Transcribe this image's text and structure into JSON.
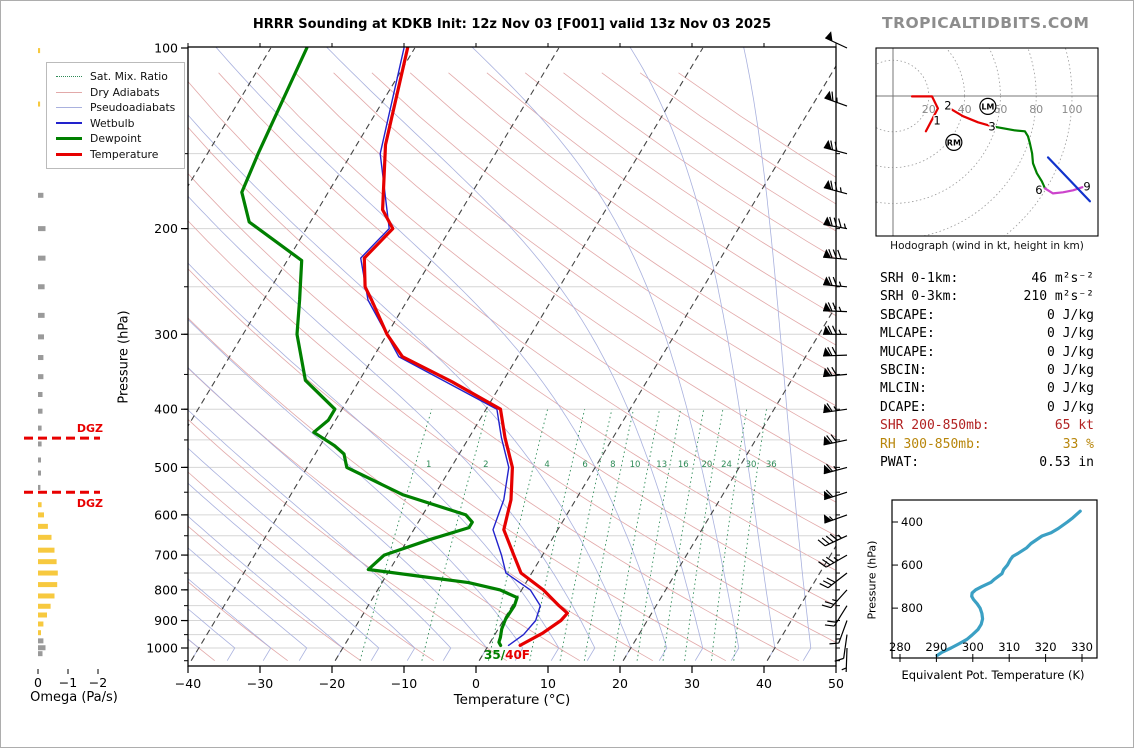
{
  "branding": "TROPICALTIDBITS.COM",
  "title": "HRRR Sounding at KDKB Init: 12z Nov 03 [F001] valid 13z Nov 03 2025",
  "stats": {
    "rows": [
      {
        "label": "SRH 0-1km:",
        "value": "46 m²s⁻²",
        "color": "#000000"
      },
      {
        "label": "SRH 0-3km:",
        "value": "210 m²s⁻²",
        "color": "#000000"
      },
      {
        "label": "SBCAPE:",
        "value": "0 J/kg",
        "color": "#000000"
      },
      {
        "label": "MLCAPE:",
        "value": "0 J/kg",
        "color": "#000000"
      },
      {
        "label": "MUCAPE:",
        "value": "0 J/kg",
        "color": "#000000"
      },
      {
        "label": "SBCIN:",
        "value": "0 J/kg",
        "color": "#000000"
      },
      {
        "label": "MLCIN:",
        "value": "0 J/kg",
        "color": "#000000"
      },
      {
        "label": "DCAPE:",
        "value": "0 J/kg",
        "color": "#000000"
      },
      {
        "label": "SHR 200-850mb:",
        "value": "65 kt",
        "color": "#b22222"
      },
      {
        "label": "RH 300-850mb:",
        "value": "33 %",
        "color": "#b8860b"
      },
      {
        "label": "PWAT:",
        "value": "0.53 in",
        "color": "#000000"
      }
    ]
  },
  "chart_data": [
    {
      "id": "skewt",
      "type": "line",
      "xlabel": "Temperature (°C)",
      "ylabel": "Pressure (hPa)",
      "xlim": [
        -40,
        50
      ],
      "plim": [
        100,
        1050
      ],
      "x_ticks": [
        -40,
        -30,
        -20,
        -10,
        0,
        10,
        20,
        30,
        40,
        50
      ],
      "p_ticks": [
        100,
        200,
        300,
        400,
        500,
        600,
        700,
        800,
        900,
        1000
      ],
      "mixing_ratio_labels": [
        1,
        2,
        4,
        6,
        8,
        10,
        13,
        16,
        20,
        24,
        30,
        36
      ],
      "surface_label": {
        "dew": "35/",
        "temp": "40F"
      },
      "legend": [
        {
          "label": "Sat. Mix. Ratio",
          "color": "#2e8b57",
          "style": "dotted",
          "width": 1.5
        },
        {
          "label": "Dry Adiabats",
          "color": "#e2a9a9",
          "style": "solid",
          "width": 1.5
        },
        {
          "label": "Pseudoadiabats",
          "color": "#a9b1de",
          "style": "solid",
          "width": 1.5
        },
        {
          "label": "Wetbulb",
          "color": "#2222cc",
          "style": "solid",
          "width": 2
        },
        {
          "label": "Dewpoint",
          "color": "#008000",
          "style": "solid",
          "width": 3.5
        },
        {
          "label": "Temperature",
          "color": "#e60000",
          "style": "solid",
          "width": 3.5
        }
      ],
      "series": [
        {
          "name": "Temperature",
          "color": "#e60000",
          "width": 3.2,
          "points": [
            [
              100,
              -61
            ],
            [
              145,
              -56
            ],
            [
              186,
              -51
            ],
            [
              200,
              -48
            ],
            [
              224,
              -49.5
            ],
            [
              250,
              -47
            ],
            [
              263,
              -45
            ],
            [
              300,
              -40
            ],
            [
              327,
              -36
            ],
            [
              360,
              -27
            ],
            [
              400,
              -18
            ],
            [
              446,
              -15
            ],
            [
              500,
              -11.5
            ],
            [
              566,
              -9
            ],
            [
              635,
              -7.5
            ],
            [
              700,
              -4
            ],
            [
              750,
              -1.5
            ],
            [
              800,
              3
            ],
            [
              850,
              6.5
            ],
            [
              875,
              8.3
            ],
            [
              900,
              8
            ],
            [
              945,
              6.5
            ],
            [
              990,
              4.4
            ]
          ]
        },
        {
          "name": "Dewpoint",
          "color": "#008000",
          "width": 3.2,
          "points": [
            [
              100,
              -75
            ],
            [
              149,
              -73
            ],
            [
              174,
              -72
            ],
            [
              195,
              -68.5
            ],
            [
              226,
              -58
            ],
            [
              263,
              -55
            ],
            [
              300,
              -52.5
            ],
            [
              358,
              -47.5
            ],
            [
              400,
              -41
            ],
            [
              417,
              -41
            ],
            [
              437,
              -42
            ],
            [
              460,
              -38
            ],
            [
              475,
              -36
            ],
            [
              500,
              -34.5
            ],
            [
              555,
              -24.5
            ],
            [
              600,
              -14
            ],
            [
              617,
              -12.5
            ],
            [
              630,
              -12.5
            ],
            [
              660,
              -17
            ],
            [
              700,
              -22
            ],
            [
              740,
              -23
            ],
            [
              760,
              -15
            ],
            [
              778,
              -8
            ],
            [
              800,
              -3
            ],
            [
              824,
              0
            ],
            [
              850,
              0.3
            ],
            [
              895,
              0.2
            ],
            [
              930,
              0.5
            ],
            [
              960,
              1
            ],
            [
              978,
              1.2
            ],
            [
              990,
              1.7
            ]
          ]
        },
        {
          "name": "Wetbulb",
          "color": "#2222cc",
          "width": 1.4,
          "points": [
            [
              100,
              -61.5
            ],
            [
              150,
              -56
            ],
            [
              200,
              -48.5
            ],
            [
              224,
              -50
            ],
            [
              263,
              -45.5
            ],
            [
              327,
              -36.5
            ],
            [
              400,
              -18.5
            ],
            [
              446,
              -15.5
            ],
            [
              500,
              -12
            ],
            [
              566,
              -10
            ],
            [
              635,
              -9
            ],
            [
              700,
              -5.7
            ],
            [
              750,
              -3.6
            ],
            [
              800,
              1.2
            ],
            [
              850,
              3.9
            ],
            [
              900,
              4.5
            ],
            [
              950,
              4
            ],
            [
              990,
              2.8
            ]
          ]
        }
      ],
      "wind_barbs": [
        {
          "p": 100,
          "spd": 50,
          "dir": 295
        },
        {
          "p": 125,
          "spd": 65,
          "dir": 290
        },
        {
          "p": 150,
          "spd": 70,
          "dir": 285
        },
        {
          "p": 175,
          "spd": 75,
          "dir": 285
        },
        {
          "p": 200,
          "spd": 85,
          "dir": 280
        },
        {
          "p": 225,
          "spd": 80,
          "dir": 275
        },
        {
          "p": 250,
          "spd": 75,
          "dir": 275
        },
        {
          "p": 275,
          "spd": 75,
          "dir": 272
        },
        {
          "p": 300,
          "spd": 75,
          "dir": 270
        },
        {
          "p": 325,
          "spd": 70,
          "dir": 268
        },
        {
          "p": 350,
          "spd": 70,
          "dir": 265
        },
        {
          "p": 400,
          "spd": 65,
          "dir": 262
        },
        {
          "p": 450,
          "spd": 70,
          "dir": 258
        },
        {
          "p": 500,
          "spd": 65,
          "dir": 255
        },
        {
          "p": 550,
          "spd": 60,
          "dir": 252
        },
        {
          "p": 600,
          "spd": 55,
          "dir": 250
        },
        {
          "p": 650,
          "spd": 45,
          "dir": 245
        },
        {
          "p": 700,
          "spd": 35,
          "dir": 240
        },
        {
          "p": 750,
          "spd": 30,
          "dir": 232
        },
        {
          "p": 800,
          "spd": 25,
          "dir": 222
        },
        {
          "p": 850,
          "spd": 20,
          "dir": 212
        },
        {
          "p": 900,
          "spd": 15,
          "dir": 200
        },
        {
          "p": 950,
          "spd": 10,
          "dir": 188
        },
        {
          "p": 1000,
          "spd": 7,
          "dir": 182
        }
      ]
    },
    {
      "id": "hodograph",
      "type": "line",
      "caption": "Hodograph (wind in kt, height in km)",
      "ring_unit": "kt",
      "rings": [
        20,
        40,
        60,
        80,
        100
      ],
      "segments": [
        {
          "color": "#e60000",
          "points": [
            [
              10.6,
              -0.2
            ],
            [
              21.8,
              -0.2
            ],
            [
              25.1,
              -6.9
            ],
            [
              18.4,
              -19.7
            ]
          ]
        },
        {
          "color": "#e60000",
          "points": [
            [
              30.7,
              -6.3
            ],
            [
              39.1,
              -11.3
            ],
            [
              47.5,
              -14.7
            ],
            [
              55.3,
              -16.9
            ]
          ]
        },
        {
          "color": "#008000",
          "points": [
            [
              55.3,
              -16.9
            ],
            [
              68.2,
              -19.2
            ],
            [
              73.7,
              -19.7
            ],
            [
              75.4,
              -22.5
            ],
            [
              76.5,
              -26.4
            ],
            [
              77.7,
              -32
            ],
            [
              78.2,
              -37.6
            ],
            [
              80.4,
              -43.2
            ],
            [
              83.2,
              -47.7
            ],
            [
              84.9,
              -51.6
            ]
          ]
        },
        {
          "color": "#cc44cc",
          "points": [
            [
              84.9,
              -51.6
            ],
            [
              89.4,
              -54.4
            ],
            [
              95,
              -53.8
            ],
            [
              100.6,
              -52.7
            ],
            [
              105.6,
              -51
            ],
            [
              108.4,
              -50.5
            ]
          ]
        },
        {
          "color": "#1133cc",
          "points": [
            [
              86.6,
              -34.3
            ],
            [
              110,
              -58.8
            ]
          ]
        }
      ],
      "height_labels": [
        {
          "text": "1",
          "u": 24.6,
          "v": -13.6
        },
        {
          "text": "2",
          "u": 30.7,
          "v": -5.2
        },
        {
          "text": "3",
          "u": 55.3,
          "v": -16.9
        },
        {
          "text": "6",
          "u": 81.5,
          "v": -52.5
        },
        {
          "text": "9",
          "u": 108.4,
          "v": -50.5
        }
      ],
      "markers": [
        {
          "text": "LM",
          "u": 53,
          "v": -5.8
        },
        {
          "text": "RM",
          "u": 34,
          "v": -25.9
        }
      ]
    },
    {
      "id": "thetae",
      "type": "line",
      "xlabel": "Equivalent Pot. Temperature (K)",
      "ylabel": "Pressure (hPa)",
      "x_ticks": [
        280,
        290,
        300,
        310,
        320,
        330
      ],
      "p_ticks": [
        400,
        600,
        800
      ],
      "color": "#3ba0c4",
      "points": [
        [
          350,
          329.5
        ],
        [
          380,
          327.5
        ],
        [
          400,
          326
        ],
        [
          430,
          323.5
        ],
        [
          450,
          321.5
        ],
        [
          465,
          319
        ],
        [
          500,
          316
        ],
        [
          520,
          314.8
        ],
        [
          545,
          312.5
        ],
        [
          560,
          311
        ],
        [
          575,
          310.3
        ],
        [
          600,
          309.5
        ],
        [
          620,
          308.5
        ],
        [
          640,
          308
        ],
        [
          665,
          306
        ],
        [
          680,
          305
        ],
        [
          700,
          302.5
        ],
        [
          715,
          300.8
        ],
        [
          730,
          299.8
        ],
        [
          745,
          299.7
        ],
        [
          760,
          300.2
        ],
        [
          780,
          301.2
        ],
        [
          800,
          302
        ],
        [
          825,
          302.5
        ],
        [
          850,
          302.7
        ],
        [
          875,
          302.3
        ],
        [
          900,
          301.4
        ],
        [
          925,
          299.8
        ],
        [
          945,
          298.4
        ],
        [
          965,
          296.3
        ],
        [
          985,
          294
        ],
        [
          1005,
          291.5
        ],
        [
          1020,
          290.2
        ]
      ]
    },
    {
      "id": "omega",
      "type": "bar",
      "xlabel": "Omega (Pa/s)",
      "x_ticks": [
        0,
        -1,
        -2
      ],
      "dgz_label": "DGZ",
      "dgz_pressures": [
        447,
        550
      ],
      "bars": [
        [
          101,
          -0.07,
          "yellow"
        ],
        [
          124,
          -0.07,
          "yellow"
        ],
        [
          176,
          -0.18,
          "gray"
        ],
        [
          200,
          -0.25,
          "gray"
        ],
        [
          224,
          -0.25,
          "gray"
        ],
        [
          250,
          -0.22,
          "gray"
        ],
        [
          279,
          -0.22,
          "gray"
        ],
        [
          303,
          -0.2,
          "gray"
        ],
        [
          328,
          -0.18,
          "gray"
        ],
        [
          353,
          -0.18,
          "gray"
        ],
        [
          378,
          -0.15,
          "gray"
        ],
        [
          403,
          -0.15,
          "gray"
        ],
        [
          430,
          -0.12,
          "gray"
        ],
        [
          457,
          -0.12,
          "gray"
        ],
        [
          486,
          -0.1,
          "gray"
        ],
        [
          511,
          -0.1,
          "gray"
        ],
        [
          540,
          -0.08,
          "gray"
        ],
        [
          577,
          -0.12,
          "yellow"
        ],
        [
          600,
          -0.2,
          "yellow"
        ],
        [
          627,
          -0.33,
          "yellow"
        ],
        [
          654,
          -0.45,
          "yellow"
        ],
        [
          687,
          -0.55,
          "yellow"
        ],
        [
          718,
          -0.62,
          "yellow"
        ],
        [
          750,
          -0.66,
          "yellow"
        ],
        [
          784,
          -0.64,
          "yellow"
        ],
        [
          819,
          -0.55,
          "yellow"
        ],
        [
          852,
          -0.42,
          "yellow"
        ],
        [
          881,
          -0.3,
          "yellow"
        ],
        [
          912,
          -0.18,
          "yellow"
        ],
        [
          943,
          -0.1,
          "yellow"
        ],
        [
          973,
          -0.18,
          "gray"
        ],
        [
          999,
          -0.25,
          "gray"
        ],
        [
          1022,
          -0.15,
          "gray"
        ]
      ]
    }
  ]
}
